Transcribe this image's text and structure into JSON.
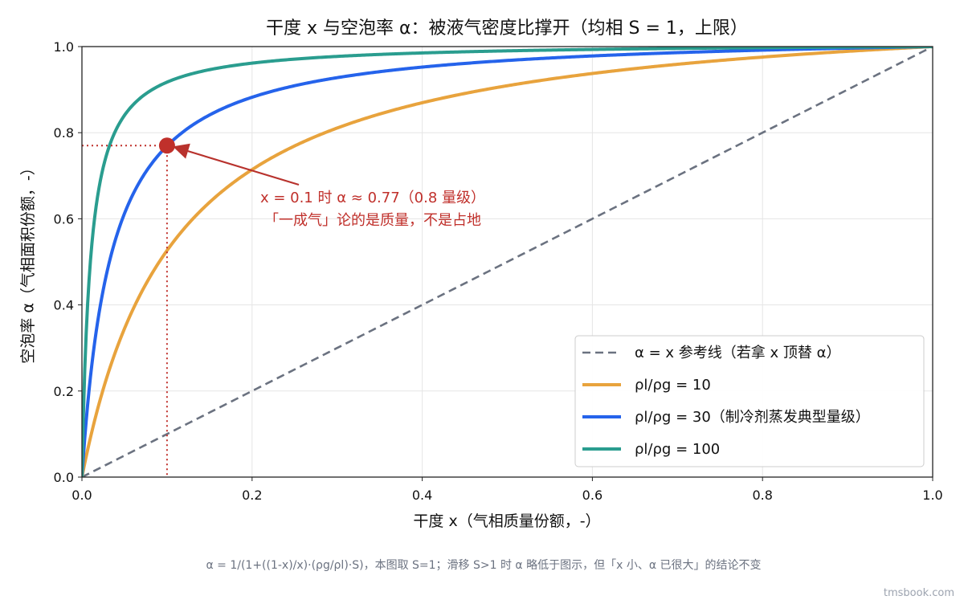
{
  "chart_data": {
    "type": "line",
    "title": "干度 x 与空泡率 α：被液气密度比撑开（均相 S = 1，上限）",
    "xlabel": "干度 x（气相质量份额，-）",
    "ylabel": "空泡率 α（气相面积份额，-）",
    "xlim": [
      0,
      1
    ],
    "ylim": [
      0,
      1
    ],
    "xticks": [
      "0.0",
      "0.2",
      "0.4",
      "0.6",
      "0.8",
      "1.0"
    ],
    "yticks": [
      "0.0",
      "0.2",
      "0.4",
      "0.6",
      "0.8",
      "1.0"
    ],
    "grid": true,
    "legend_position": "lower-right",
    "series": [
      {
        "name": "α = x 参考线（若拿 x 顶替 α）",
        "density_ratio": 1,
        "color": "#6b7280",
        "style": "dashed"
      },
      {
        "name": "ρl/ρg = 10",
        "density_ratio": 10,
        "color": "#e8a33d",
        "style": "solid"
      },
      {
        "name": "ρl/ρg = 30（制冷剂蒸发典型量级）",
        "density_ratio": 30,
        "color": "#2563eb",
        "style": "solid"
      },
      {
        "name": "ρl/ρg = 100",
        "density_ratio": 100,
        "color": "#2a9d8f",
        "style": "solid"
      }
    ],
    "highlight_point": {
      "x": 0.1,
      "y": 0.77,
      "color": "#c0302b"
    },
    "annotation": {
      "line1": "x = 0.1 时 α ≈ 0.77（0.8 量级）",
      "line2": "「一成气」论的是质量，不是占地"
    }
  },
  "footnote": "α = 1/(1+((1-x)/x)·(ρg/ρl)·S)，本图取 S=1；滑移 S>1 时 α 略低于图示，但「x 小、α 已很大」的结论不变",
  "watermark": "tmsbook.com"
}
